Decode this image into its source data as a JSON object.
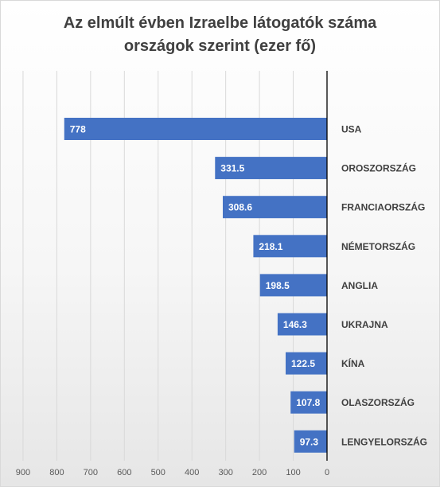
{
  "chart_data": {
    "type": "bar",
    "orientation": "horizontal",
    "x_axis_reversed": true,
    "title_lines": [
      "Az elmúlt évben Izraelbe látogatók száma",
      "országok szerint (ezer fő)"
    ],
    "categories": [
      "USA",
      "OROSZORSZÁG",
      "FRANCIAORSZÁG",
      "NÉMETORSZÁG",
      "ANGLIA",
      "UKRAJNA",
      "KÍNA",
      "OLASZORSZÁG",
      "LENGYELORSZÁG"
    ],
    "values": [
      778,
      331.5,
      308.6,
      218.1,
      198.5,
      146.3,
      122.5,
      107.8,
      97.3
    ],
    "value_labels": [
      "778",
      "331.5",
      "308.6",
      "218.1",
      "198.5",
      "146.3",
      "122.5",
      "107.8",
      "97.3"
    ],
    "x_ticks": [
      900,
      800,
      700,
      600,
      500,
      400,
      300,
      200,
      100,
      0
    ],
    "xlim": [
      0,
      900
    ],
    "grid": true,
    "colors": {
      "bar": "#4472c4",
      "bar_label": "#ffffff",
      "category_label": "#404040",
      "tick_label": "#595959",
      "gridline": "#d9d9d9",
      "axis": "#000000"
    }
  }
}
